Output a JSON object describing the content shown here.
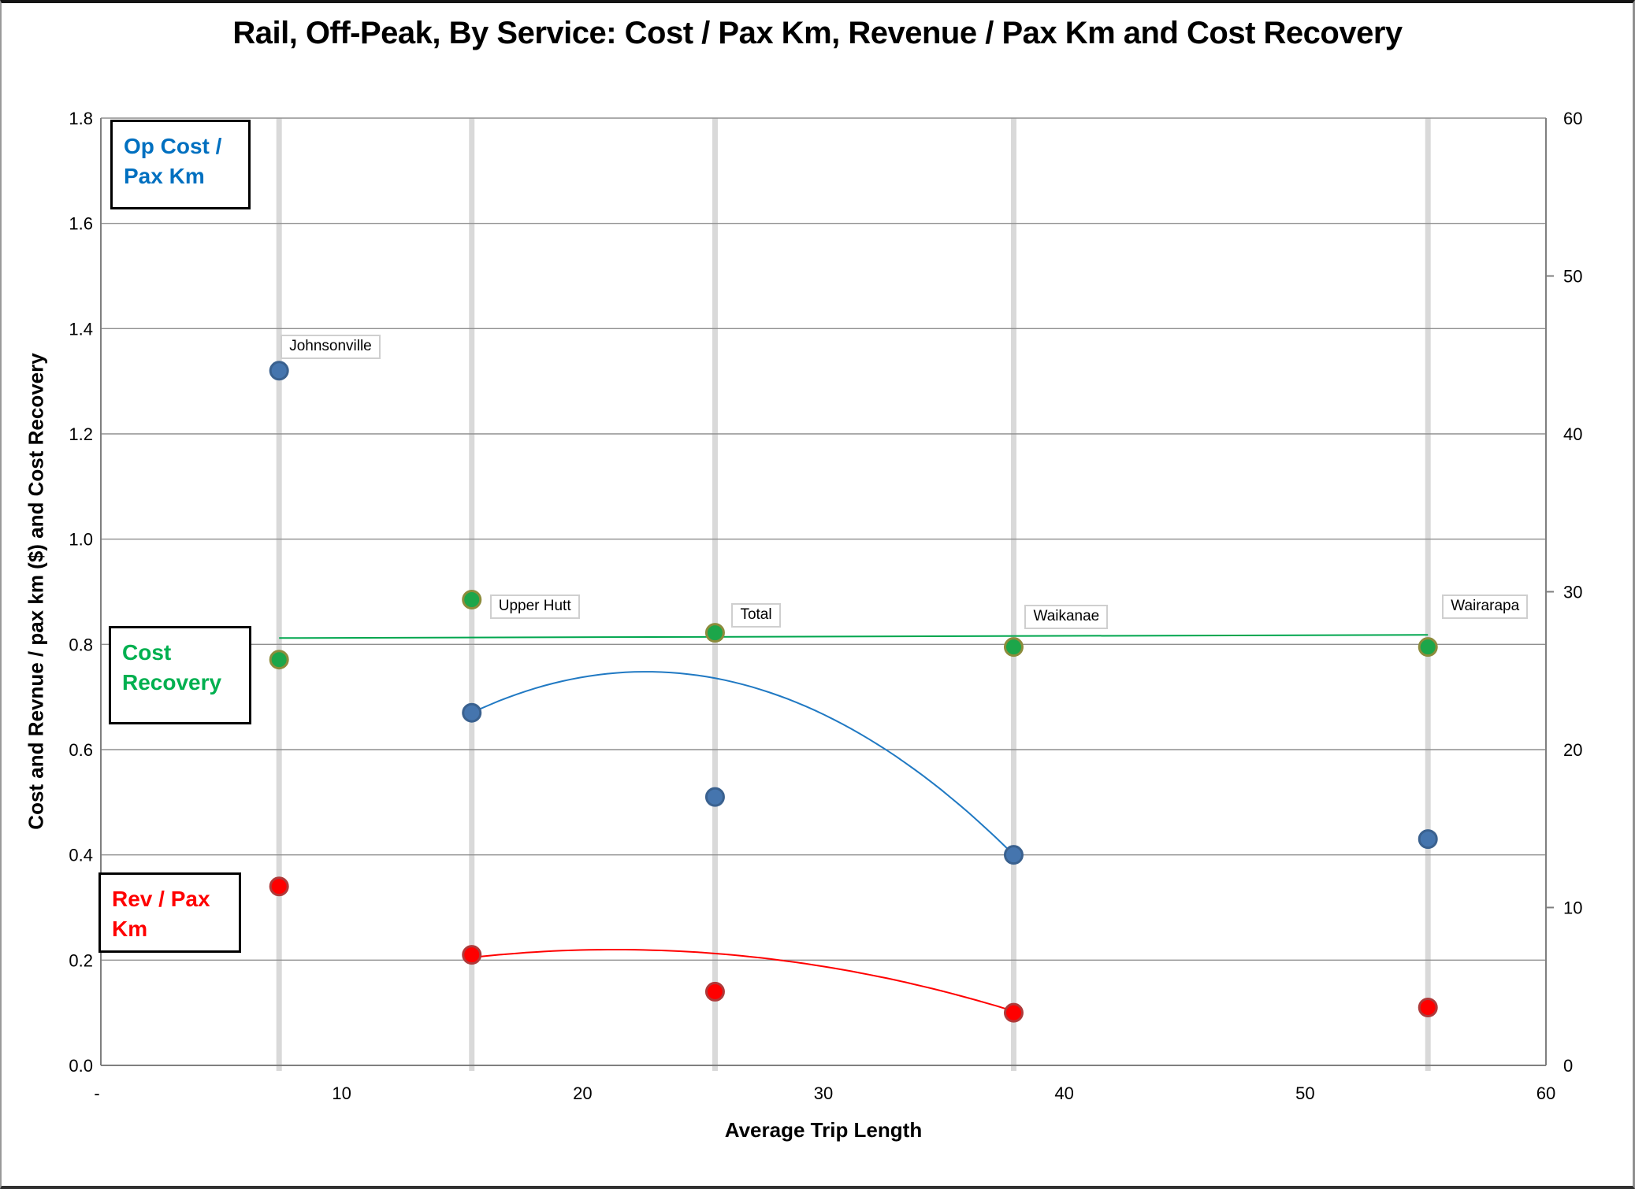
{
  "title": "Rail, Off-Peak, By Service: Cost / Pax Km, Revenue / Pax Km and Cost Recovery",
  "axes": {
    "x": {
      "title": "Average Trip Length",
      "min": 0,
      "max": 60,
      "tick_values": [
        0,
        10,
        20,
        30,
        40,
        50,
        60
      ],
      "tick_labels": [
        "-",
        "10",
        "20",
        "30",
        "40",
        "50",
        "60"
      ]
    },
    "y_left": {
      "title": "Cost and Revnue / pax km ($) and Cost Recovery",
      "min": 0.0,
      "max": 1.8,
      "tick_values": [
        0,
        0.2,
        0.4,
        0.6,
        0.8,
        1.0,
        1.2,
        1.4,
        1.6,
        1.8
      ],
      "tick_labels": [
        "0.0",
        "0.2",
        "0.4",
        "0.6",
        "0.8",
        "1.0",
        "1.2",
        "1.4",
        "1.6",
        "1.8"
      ]
    },
    "y_right": {
      "min": 0,
      "max": 60,
      "tick_values": [
        0,
        10,
        20,
        30,
        40,
        50,
        60
      ],
      "tick_labels": [
        "0",
        "10",
        "20",
        "30",
        "40",
        "50",
        "60"
      ],
      "tick_marks_at": [
        10,
        30,
        50
      ]
    }
  },
  "series_boxes": {
    "op_cost": {
      "line1": "Op Cost /",
      "line2": "Pax Km",
      "color": "#0070C0"
    },
    "cost_recovery": {
      "line1": "Cost",
      "line2": "Recovery",
      "color": "#00B050"
    },
    "rev": {
      "line1": "Rev / Pax",
      "line2": "Km",
      "color": "#FF0000"
    }
  },
  "colors": {
    "gridline": "#8f8f8f",
    "axis_line": "#7f7f7f",
    "category_column": "#d9d9d9",
    "blue_marker_fill": "#4575AE",
    "blue_marker_stroke": "#3A618F",
    "red_marker_fill": "#FF0000",
    "red_marker_stroke": "#AF3A3A",
    "green_marker_fill": "#1CA64A",
    "green_marker_stroke": "#8C8C3C",
    "blue_trend": "#2079C3",
    "red_trend": "#FF0000",
    "green_trend": "#00A64E"
  },
  "chart_data": {
    "type": "scatter",
    "title": "Rail, Off-Peak, By Service: Cost / Pax Km, Revenue / Pax Km and Cost Recovery",
    "xlabel": "Average Trip Length",
    "ylabel_left": "Cost and Revnue / pax km ($) and Cost Recovery",
    "xlim": [
      0,
      60
    ],
    "ylim_left": [
      0,
      1.8
    ],
    "ylim_right": [
      0,
      60
    ],
    "grid": "horizontal",
    "legend_position": "floating-text-boxes",
    "categories": [
      "Johnsonville",
      "Upper Hutt",
      "Total",
      "Waikanae",
      "Wairarapa"
    ],
    "x": [
      7.4,
      15.4,
      25.5,
      37.9,
      55.1
    ],
    "series": [
      {
        "name": "Op Cost / Pax Km",
        "axis": "left",
        "values": [
          1.32,
          0.67,
          0.51,
          0.4,
          0.43
        ]
      },
      {
        "name": "Rev / Pax Km",
        "axis": "left",
        "values": [
          0.34,
          0.21,
          0.14,
          0.1,
          0.11
        ]
      },
      {
        "name": "Cost Recovery",
        "axis": "right",
        "values": [
          25.7,
          29.5,
          27.4,
          26.5,
          26.5
        ]
      }
    ],
    "trendlines": [
      {
        "series": "Op Cost / Pax Km",
        "axis": "left",
        "type": "quadratic",
        "points": [
          [
            15.4,
            0.67
          ],
          [
            22.8,
            0.748
          ],
          [
            37.9,
            0.4
          ]
        ]
      },
      {
        "series": "Rev / Pax Km",
        "axis": "left",
        "type": "quadratic",
        "points": [
          [
            15.4,
            0.205
          ],
          [
            21.5,
            0.22
          ],
          [
            37.9,
            0.103
          ]
        ]
      },
      {
        "series": "Cost Recovery",
        "axis": "left",
        "type": "linear",
        "points": [
          [
            7.4,
            0.812
          ],
          [
            55.1,
            0.818
          ]
        ]
      }
    ]
  }
}
